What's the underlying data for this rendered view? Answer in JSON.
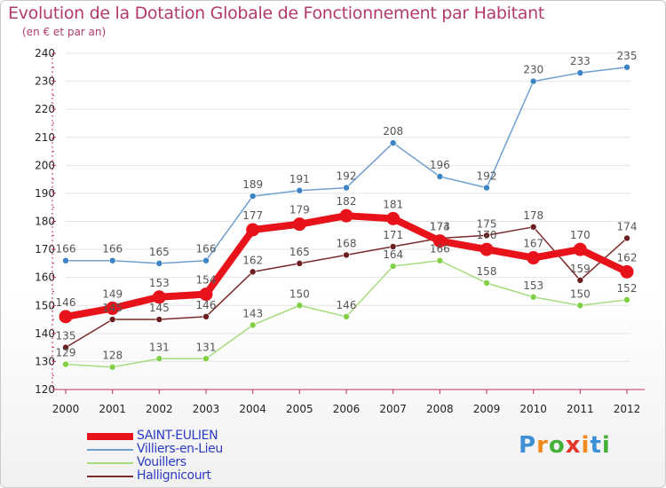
{
  "header": {
    "title": "Evolution de la Dotation Globale de Fonctionnement par Habitant",
    "subtitle": "(en € et par an)"
  },
  "logo": {
    "text": "Proxiti"
  },
  "colors": {
    "title": "#b03a6b",
    "axis": "#c22f6b",
    "grid": "#e4e4e4",
    "tick_label": "#222222",
    "value_label": "#555555",
    "legend_text": "#2b3cc4"
  },
  "chart_data": {
    "type": "line",
    "title": "Evolution de la Dotation Globale de Fonctionnement par Habitant",
    "subtitle": "(en € et par an)",
    "xlabel": "",
    "ylabel": "",
    "x": [
      "2000",
      "2001",
      "2002",
      "2003",
      "2004",
      "2005",
      "2006",
      "2007",
      "2008",
      "2009",
      "2010",
      "2011",
      "2012"
    ],
    "ylim": [
      120,
      240
    ],
    "yticks": [
      120,
      130,
      140,
      150,
      160,
      170,
      180,
      190,
      200,
      210,
      220,
      230,
      240
    ],
    "grid": true,
    "legend_position": "bottom-left",
    "series": [
      {
        "name": "SAINT-EULIEN",
        "color": "#e8131a",
        "emphasis": true,
        "values": [
          146,
          149,
          153,
          154,
          177,
          179,
          182,
          181,
          173,
          170,
          167,
          170,
          162
        ]
      },
      {
        "name": "Villiers-en-Lieu",
        "color": "#6f9fcf",
        "marker": "#3c84c6",
        "values": [
          166,
          166,
          165,
          166,
          189,
          191,
          192,
          208,
          196,
          192,
          230,
          233,
          235
        ]
      },
      {
        "name": "Vouillers",
        "color": "#a6dc7c",
        "marker": "#80cf45",
        "values": [
          129,
          128,
          131,
          131,
          143,
          150,
          146,
          164,
          166,
          158,
          153,
          150,
          152
        ]
      },
      {
        "name": "Hallignicourt",
        "color": "#7a2a2a",
        "marker": "#6b1d20",
        "values": [
          135,
          145,
          145,
          146,
          162,
          165,
          168,
          171,
          174,
          175,
          178,
          159,
          174
        ]
      }
    ]
  }
}
